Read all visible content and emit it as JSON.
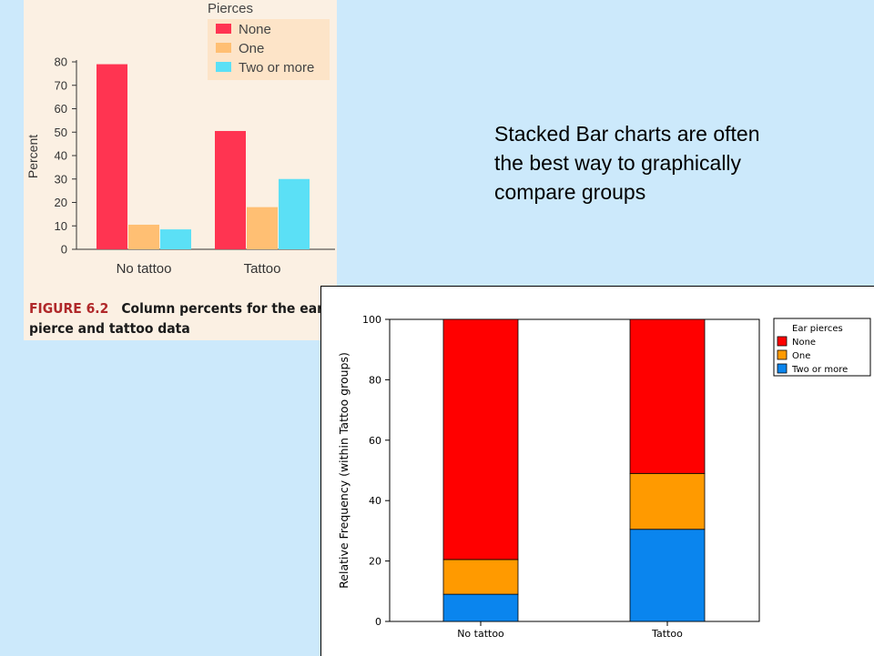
{
  "figure_caption": {
    "label": "FIGURE 6.2",
    "text": "Column percents for the ear pierce and tattoo data"
  },
  "note": "Stacked Bar charts are often the best way to graphically compare groups",
  "chart_data": [
    {
      "type": "bar",
      "categories": [
        "No tattoo",
        "Tattoo"
      ],
      "series": [
        {
          "name": "None",
          "values": [
            79,
            50.5
          ],
          "color": "#ff3451"
        },
        {
          "name": "One",
          "values": [
            10.5,
            18
          ],
          "color": "#ffbf73"
        },
        {
          "name": "Two or more",
          "values": [
            8.5,
            30
          ],
          "color": "#5be0f6"
        }
      ],
      "xlabel": "",
      "ylabel": "Percent",
      "ylim": [
        0,
        80
      ],
      "yticks": [
        0,
        10,
        20,
        30,
        40,
        50,
        60,
        70,
        80
      ],
      "legend_title": "Pierces",
      "legend_position": "top-right",
      "grid": false
    },
    {
      "type": "bar",
      "stacked": true,
      "categories": [
        "No tattoo",
        "Tattoo"
      ],
      "series": [
        {
          "name": "Two or more",
          "values": [
            9,
            30.5
          ],
          "color": "#0a85ee"
        },
        {
          "name": "One",
          "values": [
            11.5,
            18.5
          ],
          "color": "#ff9a00"
        },
        {
          "name": "None",
          "values": [
            79.5,
            51
          ],
          "color": "#ff0000"
        }
      ],
      "xlabel": "",
      "ylabel": "Relative Frequency (within Tattoo groups)",
      "ylim": [
        0,
        100
      ],
      "yticks": [
        0,
        20,
        40,
        60,
        80,
        100
      ],
      "legend_title": "Ear pierces",
      "legend_entries": [
        "None",
        "One",
        "Two or more"
      ],
      "legend_position": "top-right",
      "grid": false
    }
  ]
}
